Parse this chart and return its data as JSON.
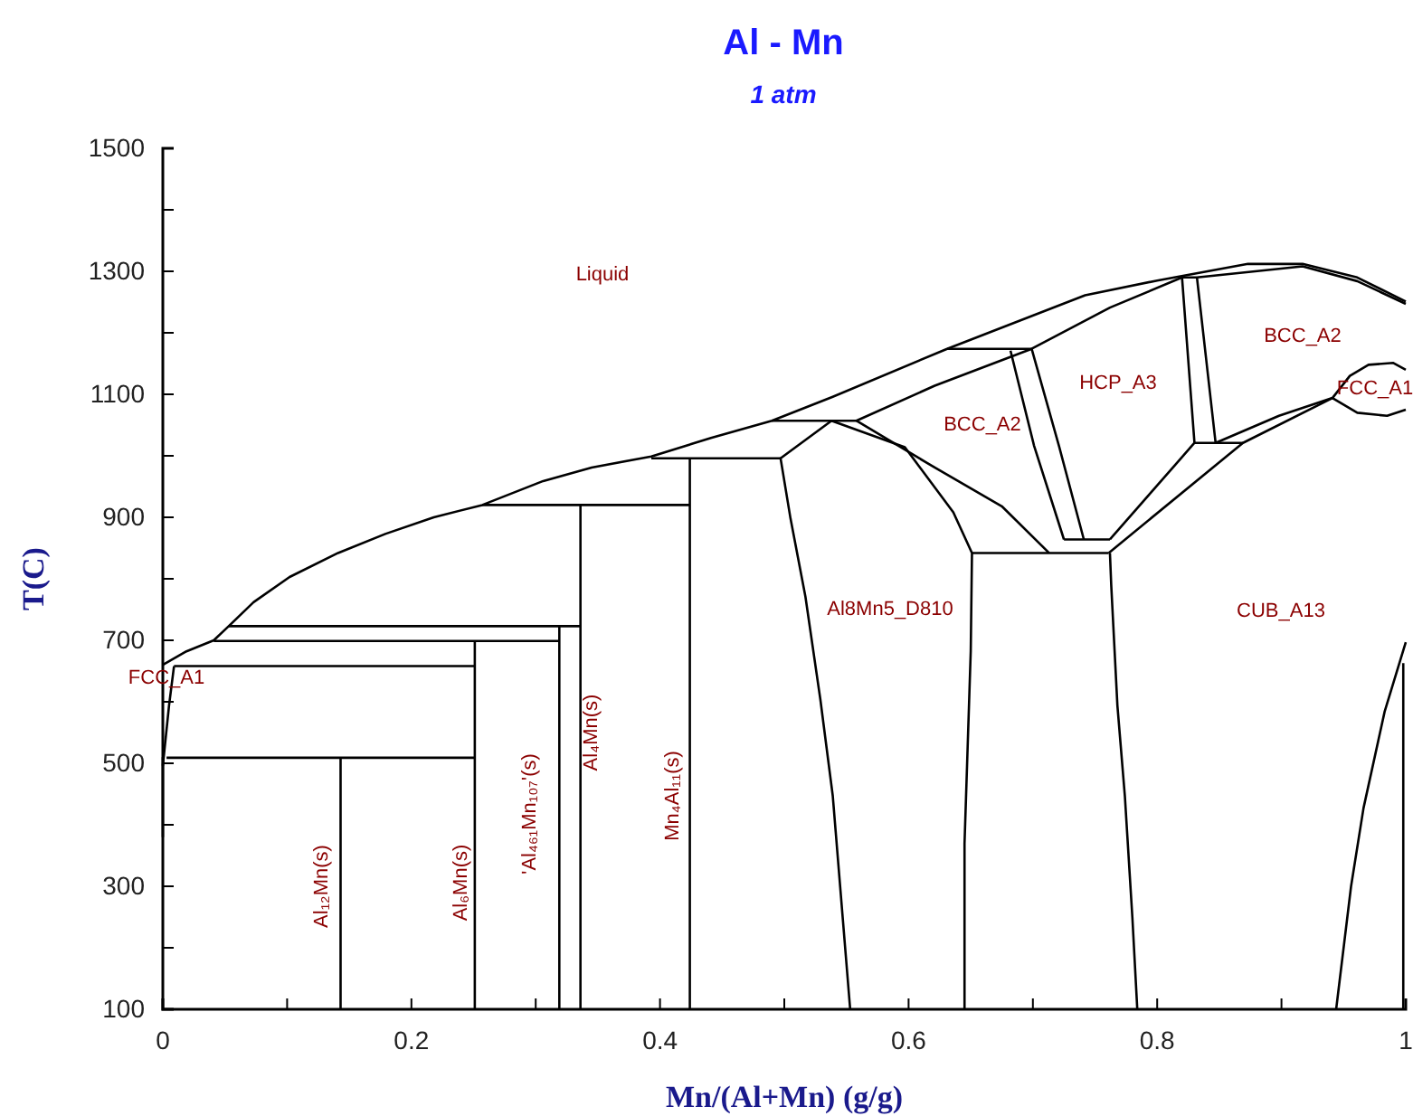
{
  "chart_data": {
    "type": "line",
    "title": "Al - Mn",
    "subtitle": "1 atm",
    "xlabel": "Mn/(Al+Mn) (g/g)",
    "ylabel": "T(C)",
    "xlim": [
      0,
      1
    ],
    "ylim": [
      100,
      1500
    ],
    "xticks": [
      0,
      {
        "value": 0.1,
        "label": null
      },
      0.2,
      {
        "value": 0.3,
        "label": null
      },
      0.4,
      {
        "value": 0.5,
        "label": null
      },
      0.6,
      {
        "value": 0.7,
        "label": null
      },
      0.8,
      {
        "value": 0.9,
        "label": null
      },
      1
    ],
    "yticks": [
      100,
      {
        "value": 200,
        "label": null
      },
      300,
      {
        "value": 400,
        "label": null
      },
      500,
      {
        "value": 600,
        "label": null
      },
      700,
      {
        "value": 800,
        "label": null
      },
      900,
      {
        "value": 1000,
        "label": null
      },
      1100,
      {
        "value": 1200,
        "label": null
      },
      1300,
      {
        "value": 1400,
        "label": null
      },
      1500
    ],
    "series": [
      {
        "color": "#000000",
        "x": [
          0,
          0.019,
          0.041,
          0.053,
          0.073,
          0.102,
          0.141,
          0.179,
          0.218,
          0.257,
          0.306,
          0.345,
          0.393,
          0.441,
          0.49,
          0.539,
          0.631,
          0.742,
          0.8,
          0.873,
          0.917,
          0.961,
          1
        ],
        "values": [
          660,
          682,
          700,
          723,
          762,
          803,
          842,
          873,
          900,
          920,
          959,
          981,
          999,
          1029,
          1057,
          1096,
          1174,
          1261,
          1285,
          1312,
          1312,
          1290,
          1251
        ]
      },
      {
        "color": "#000000",
        "x": [
          0,
          0.005,
          0.009
        ],
        "values": [
          496,
          594,
          658
        ]
      },
      {
        "color": "#000000",
        "x": [
          0,
          0
        ],
        "values": [
          380,
          510
        ]
      },
      {
        "color": "#000000",
        "x": [
          0.003,
          0.251
        ],
        "values": [
          509,
          509
        ]
      },
      {
        "color": "#000000",
        "x": [
          0.009,
          0.251
        ],
        "values": [
          658,
          658
        ]
      },
      {
        "color": "#000000",
        "x": [
          0.041,
          0.319
        ],
        "values": [
          699,
          699
        ]
      },
      {
        "color": "#000000",
        "x": [
          0.053,
          0.336
        ],
        "values": [
          723,
          723
        ]
      },
      {
        "color": "#000000",
        "x": [
          0.257,
          0.424
        ],
        "values": [
          920,
          920
        ]
      },
      {
        "color": "#000000",
        "x": [
          0.393,
          0.497
        ],
        "values": [
          996,
          996
        ]
      },
      {
        "color": "#000000",
        "x": [
          0.49,
          0.558,
          0.621,
          0.699,
          0.762,
          0.82,
          0.832,
          0.917,
          0.961,
          1
        ],
        "values": [
          1057,
          1057,
          1114,
          1174,
          1241,
          1290,
          1290,
          1308,
          1284,
          1247
        ]
      },
      {
        "color": "#000000",
        "x": [
          0.631,
          0.699
        ],
        "values": [
          1174,
          1174
        ]
      },
      {
        "color": "#000000",
        "x": [
          0.83,
          0.869
        ],
        "values": [
          1021,
          1021
        ]
      },
      {
        "color": "#000000",
        "x": [
          0.725,
          0.762
        ],
        "values": [
          864,
          864
        ]
      },
      {
        "color": "#000000",
        "x": [
          0.651,
          0.761
        ],
        "values": [
          842,
          842
        ]
      },
      {
        "color": "#000000",
        "x": [
          0.143,
          0.143
        ],
        "values": [
          509,
          100
        ]
      },
      {
        "color": "#000000",
        "x": [
          0.251,
          0.251
        ],
        "values": [
          699,
          100
        ]
      },
      {
        "color": "#000000",
        "x": [
          0.319,
          0.319
        ],
        "values": [
          723,
          100
        ]
      },
      {
        "color": "#000000",
        "x": [
          0.336,
          0.336
        ],
        "values": [
          920,
          100
        ]
      },
      {
        "color": "#000000",
        "x": [
          0.424,
          0.424
        ],
        "values": [
          996,
          100
        ]
      },
      {
        "color": "#000000",
        "x": [
          0.538,
          0.497,
          0.505,
          0.517,
          0.529,
          0.539,
          0.553
        ],
        "values": [
          1057,
          996,
          898,
          771,
          604,
          447,
          100
        ]
      },
      {
        "color": "#000000",
        "x": [
          0.538,
          0.597,
          0.636,
          0.651,
          0.65,
          0.645,
          0.645
        ],
        "values": [
          1057,
          1014,
          908,
          842,
          682,
          369,
          100
        ]
      },
      {
        "color": "#000000",
        "x": [
          0.558,
          0.621,
          0.675,
          0.713
        ],
        "values": [
          1057,
          981,
          918,
          842
        ]
      },
      {
        "color": "#000000",
        "x": [
          0.682,
          0.701,
          0.725
        ],
        "values": [
          1171,
          1016,
          864
        ]
      },
      {
        "color": "#000000",
        "x": [
          0.699,
          0.721,
          0.741
        ],
        "values": [
          1174,
          1016,
          864
        ]
      },
      {
        "color": "#000000",
        "x": [
          0.762,
          0.83,
          0.82
        ],
        "values": [
          864,
          1021,
          1290
        ]
      },
      {
        "color": "#000000",
        "x": [
          0.832,
          0.847,
          0.898,
          0.941,
          0.955,
          0.97,
          0.99,
          1
        ],
        "values": [
          1290,
          1021,
          1065,
          1094,
          1130,
          1148,
          1151,
          1140
        ]
      },
      {
        "color": "#000000",
        "x": [
          0.761,
          0.869,
          0.941,
          0.961,
          0.985,
          1
        ],
        "values": [
          842,
          1021,
          1094,
          1070,
          1065,
          1075
        ]
      },
      {
        "color": "#000000",
        "x": [
          0.762,
          0.763,
          0.768,
          0.774,
          0.78,
          0.784
        ],
        "values": [
          842,
          791,
          594,
          447,
          251,
          100
        ]
      },
      {
        "color": "#000000",
        "x": [
          1,
          0.983,
          0.966,
          0.956,
          0.944
        ],
        "values": [
          697,
          584,
          427,
          300,
          100
        ]
      },
      {
        "color": "#000000",
        "x": [
          0.998,
          0.998
        ],
        "values": [
          663,
          100
        ]
      }
    ],
    "annotations": [
      "Liquid",
      "BCC_A2",
      "HCP_A3",
      "BCC_A2",
      "FCC_A1",
      "Al8Mn5_D810",
      "CUB_A13",
      "FCC_A1",
      "Al₁₂Mn(s)",
      "Al₆Mn(s)",
      "'Al₄₆₁Mn₁₀₇'(s)",
      "Al₄Mn(s)",
      "Mn₄Al₁₁(s)"
    ]
  }
}
